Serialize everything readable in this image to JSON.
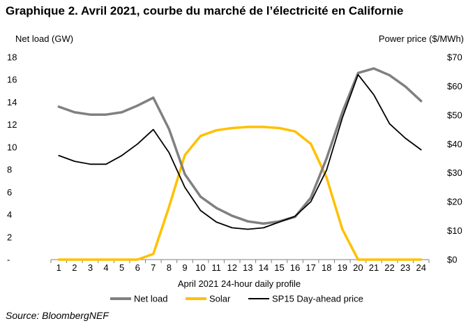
{
  "title": "Graphique 2. Avril 2021, courbe du marché de l’électricité en Californie",
  "source": "Source: BloombergNEF",
  "chart_data": {
    "type": "line",
    "title": "Graphique 2. Avril 2021, courbe du marché de l’électricité en Californie",
    "xlabel": "April 2021 24-hour daily profile",
    "ylabel_left": "Net load (GW)",
    "ylabel_right": "Power price ($/MWh)",
    "x": [
      1,
      2,
      3,
      4,
      5,
      6,
      7,
      8,
      9,
      10,
      11,
      12,
      13,
      14,
      15,
      16,
      17,
      18,
      19,
      20,
      21,
      22,
      23,
      24
    ],
    "y_left_ticks": [
      "-",
      "2",
      "4",
      "6",
      "8",
      "10",
      "12",
      "14",
      "16",
      "18"
    ],
    "y_right_ticks": [
      "$0",
      "$10",
      "$20",
      "$30",
      "$40",
      "$50",
      "$60",
      "$70"
    ],
    "ylim_left": [
      0,
      18
    ],
    "ylim_right": [
      0,
      70
    ],
    "grid": false,
    "legend_position": "bottom",
    "series": [
      {
        "name": "Net load",
        "axis": "left",
        "color": "#808080",
        "values": [
          13.6,
          13.1,
          12.9,
          12.9,
          13.1,
          13.7,
          14.4,
          11.6,
          7.6,
          5.6,
          4.6,
          3.9,
          3.4,
          3.2,
          3.4,
          3.8,
          5.5,
          9.0,
          13.1,
          16.6,
          17.0,
          16.4,
          15.4,
          14.1
        ]
      },
      {
        "name": "Solar",
        "axis": "left",
        "color": "#FFC000",
        "values": [
          0.0,
          0.0,
          0.0,
          0.0,
          0.0,
          0.0,
          0.5,
          4.7,
          9.3,
          11.0,
          11.5,
          11.7,
          11.8,
          11.8,
          11.7,
          11.4,
          10.3,
          7.3,
          2.7,
          0.0,
          0.0,
          0.0,
          0.0,
          0.0
        ]
      },
      {
        "name": "SP15 Day-ahead price",
        "axis": "right",
        "color": "#000000",
        "values": [
          36,
          34,
          33,
          33,
          36,
          40,
          45,
          37,
          25,
          17,
          13,
          11,
          10.5,
          11,
          13,
          15,
          20,
          31,
          49,
          64,
          57,
          47,
          42,
          38
        ]
      }
    ]
  }
}
